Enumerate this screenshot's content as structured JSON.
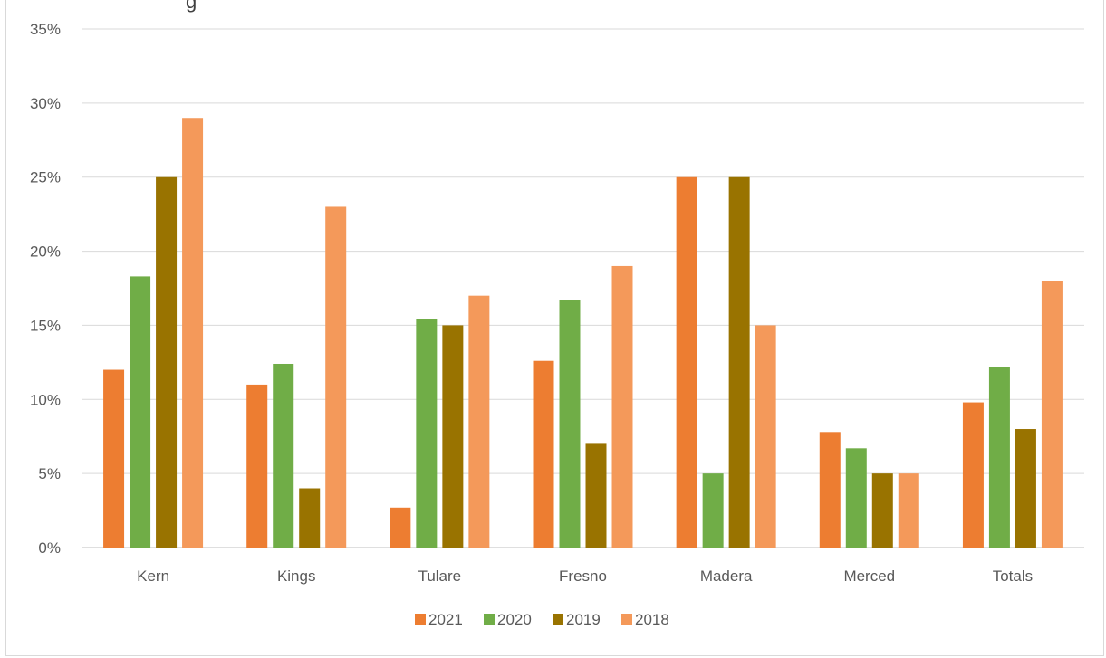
{
  "chart_data": {
    "type": "bar",
    "title_fragment": "g",
    "categories": [
      "Kern",
      "Kings",
      "Tulare",
      "Fresno",
      "Madera",
      "Merced",
      "Totals"
    ],
    "series": [
      {
        "name": "2021",
        "color": "#ed7d31",
        "values": [
          12,
          11,
          2.7,
          12.6,
          25,
          7.8,
          9.8
        ]
      },
      {
        "name": "2020",
        "color": "#70ad47",
        "values": [
          18.3,
          12.4,
          15.4,
          16.7,
          5,
          6.7,
          12.2
        ]
      },
      {
        "name": "2019",
        "color": "#997300",
        "values": [
          25,
          4,
          15,
          7,
          25,
          5,
          8
        ]
      },
      {
        "name": "2018",
        "color": "#f4995a",
        "values": [
          29,
          23,
          17,
          19,
          15,
          5,
          18
        ]
      }
    ],
    "y_ticks": [
      "0%",
      "5%",
      "10%",
      "15%",
      "20%",
      "25%",
      "30%",
      "35%"
    ],
    "ylim": [
      0,
      35
    ],
    "legend_position": "bottom",
    "grid": true
  }
}
